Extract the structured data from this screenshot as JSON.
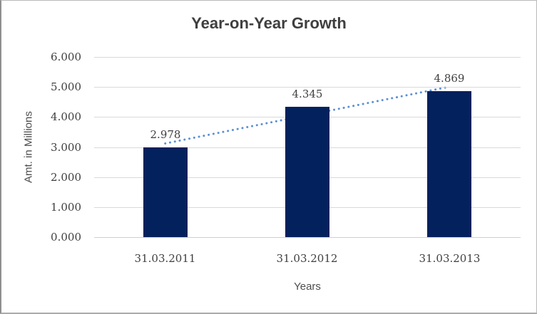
{
  "chart_data": {
    "type": "bar",
    "title": "Year-on-Year Growth",
    "xlabel": "Years",
    "ylabel": "Amt. in Millions",
    "categories": [
      "31.03.2011",
      "31.03.2012",
      "31.03.2013"
    ],
    "values": [
      2.978,
      4.345,
      4.869
    ],
    "data_labels": [
      "2.978",
      "4.345",
      "4.869"
    ],
    "y_ticks": [
      "0.000",
      "1.000",
      "2.000",
      "3.000",
      "4.000",
      "5.000",
      "6.000"
    ],
    "ylim": [
      0,
      6
    ],
    "grid": true,
    "legend_position": "none",
    "trendline": {
      "type": "linear",
      "style": "dotted"
    },
    "colors": {
      "bar": "#03215C",
      "trendline": "#5B8FD4",
      "gridline": "#D9D9D9",
      "axis_line": "#CFCFCF",
      "title_text": "#3F3F3F",
      "label_text": "#3F3F3F",
      "axis_title_text": "#4D4D4D",
      "background": "#FFFFFF"
    }
  }
}
